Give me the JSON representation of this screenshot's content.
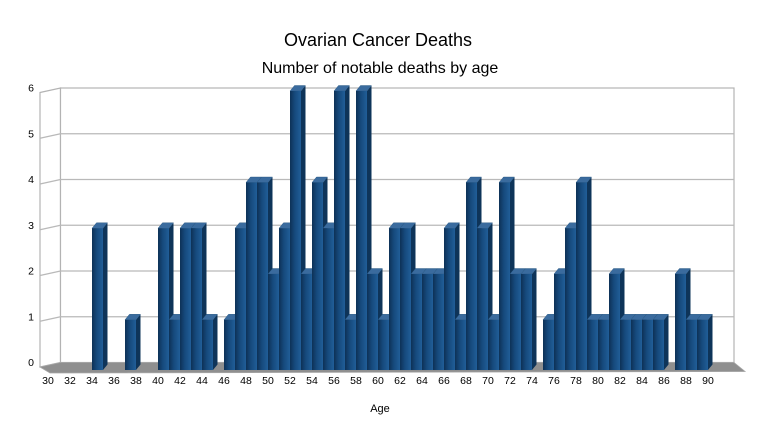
{
  "chart_data": {
    "type": "bar",
    "title": "Ovarian Cancer Deaths",
    "subtitle": "Number of notable deaths by age",
    "xlabel": "Age",
    "ylabel": "",
    "style_3d": true,
    "legend": "none",
    "grid": true,
    "ylim": [
      0,
      6
    ],
    "x_start_age": 30,
    "x_end_age": 90,
    "values": [
      0,
      0,
      0,
      0,
      3,
      0,
      0,
      1,
      0,
      0,
      3,
      1,
      3,
      3,
      1,
      0,
      1,
      3,
      4,
      4,
      2,
      3,
      6,
      2,
      4,
      3,
      6,
      1,
      6,
      2,
      1,
      3,
      3,
      2,
      2,
      2,
      3,
      1,
      4,
      3,
      1,
      4,
      2,
      2,
      0,
      1,
      2,
      3,
      4,
      1,
      1,
      2,
      1,
      1,
      1,
      1,
      0,
      2,
      1,
      1,
      0
    ],
    "x_tick_labels": [
      "30",
      "32",
      "34",
      "36",
      "38",
      "40",
      "42",
      "44",
      "46",
      "48",
      "50",
      "52",
      "54",
      "56",
      "58",
      "60",
      "62",
      "64",
      "66",
      "68",
      "70",
      "72",
      "74",
      "76",
      "78",
      "80",
      "82",
      "84",
      "86",
      "88",
      "90"
    ],
    "y_tick_labels": [
      "0",
      "1",
      "2",
      "3",
      "4",
      "5",
      "6"
    ],
    "colors": {
      "bar_front": "#164a7d",
      "bar_front_dark_edge": "#0d3156",
      "bar_front_light_edge": "#215e98",
      "bar_top": "#3a6b9e",
      "bar_side": "#0e3459",
      "wall": "#ffffff",
      "wall_border": "#b3b3b3",
      "gridline": "#b9b9b9",
      "floor": "#8f8f8f",
      "text": "#000000"
    }
  }
}
